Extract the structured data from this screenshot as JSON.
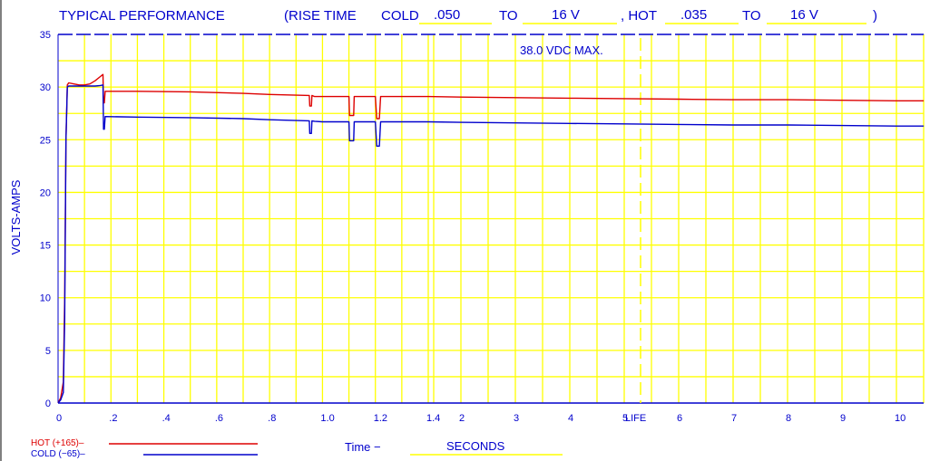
{
  "chart_data": {
    "type": "line",
    "title": "TYPICAL PERFORMANCE",
    "rise_time": {
      "prefix": "(RISE TIME",
      "cold_label": "COLD",
      "cold_value": ".050",
      "to1_label": "TO",
      "cold_to_value": "16 V",
      "hot_label": ", HOT",
      "hot_value": ".035",
      "to2_label": "TO",
      "hot_to_value": "16 V",
      "suffix": ")"
    },
    "annotation": "38.0 VDC MAX.",
    "annotation_value": 35,
    "life_label": "LIFE",
    "ylabel": "VOLTS-AMPS",
    "xlabel_prefix": "Time  −",
    "xlabel_units": "SECONDS",
    "ylim": [
      0,
      35
    ],
    "yticks": [
      0,
      5,
      10,
      15,
      20,
      25,
      30,
      35
    ],
    "ytick_labels": [
      "0",
      "5",
      "10",
      "15",
      "20",
      "25",
      "30",
      "35"
    ],
    "xticks": [
      0,
      0.2,
      0.4,
      0.6,
      0.8,
      1.0,
      1.2,
      1.4,
      2,
      3,
      4,
      5,
      6,
      7,
      8,
      9,
      10
    ],
    "xtick_labels": [
      "0",
      ".2",
      ".4",
      ".6",
      ".8",
      "1.0",
      "1.2",
      "1.4",
      "2",
      "3",
      "4",
      "5",
      "6",
      "7",
      "8",
      "9",
      "10"
    ],
    "x_scale": "piecewise: 0-1.4 s expanded, 1.4-10.5 s compressed",
    "life_x": 5.3,
    "grid": true,
    "legend": "bottom-left",
    "colors": {
      "axes": "#0000cc",
      "grid": "#ffff00",
      "hot": "#dd0000",
      "cold": "#0000cc",
      "title": "#0000cc",
      "fill_values": "#ffff00"
    },
    "series": [
      {
        "name": "HOT (+165)–",
        "color": "#dd0000",
        "x": [
          0,
          0.01,
          0.02,
          0.025,
          0.03,
          0.035,
          0.04,
          0.06,
          0.08,
          0.1,
          0.12,
          0.14,
          0.16,
          0.17,
          0.172,
          0.175,
          0.178,
          0.18,
          0.3,
          0.5,
          0.7,
          0.8,
          0.95,
          0.952,
          0.958,
          0.96,
          0.97,
          1.0,
          1.1,
          1.102,
          1.118,
          1.12,
          1.2,
          1.205,
          1.215,
          1.22,
          1.4,
          2,
          3,
          4,
          5,
          6,
          7,
          8,
          9,
          10,
          10.5
        ],
        "values": [
          0,
          0.5,
          2,
          10,
          25,
          30.2,
          30.4,
          30.3,
          30.2,
          30.2,
          30.3,
          30.6,
          31,
          31.2,
          28.5,
          28.5,
          29.6,
          29.6,
          29.6,
          29.55,
          29.4,
          29.3,
          29.2,
          28.2,
          28.2,
          29.2,
          29.1,
          29.1,
          29.1,
          27.3,
          27.3,
          29.1,
          29.1,
          27,
          27,
          29.1,
          29.1,
          29.05,
          29,
          28.95,
          28.9,
          28.85,
          28.8,
          28.8,
          28.75,
          28.7,
          28.7
        ]
      },
      {
        "name": "COLD  (−65)–",
        "color": "#0000cc",
        "x": [
          0,
          0.01,
          0.02,
          0.025,
          0.03,
          0.035,
          0.04,
          0.06,
          0.08,
          0.1,
          0.12,
          0.14,
          0.16,
          0.17,
          0.172,
          0.175,
          0.178,
          0.18,
          0.3,
          0.5,
          0.7,
          0.8,
          0.95,
          0.952,
          0.958,
          0.96,
          0.97,
          1.0,
          1.1,
          1.102,
          1.118,
          1.12,
          1.2,
          1.205,
          1.215,
          1.22,
          1.4,
          2,
          3,
          4,
          5,
          6,
          7,
          8,
          9,
          10,
          10.5
        ],
        "values": [
          0,
          0.3,
          1,
          8,
          25,
          30,
          30.1,
          30.1,
          30.1,
          30.1,
          30.1,
          30.1,
          30.15,
          30.2,
          26,
          26,
          27.2,
          27.2,
          27.15,
          27.1,
          27,
          26.9,
          26.8,
          25.6,
          25.6,
          26.8,
          26.75,
          26.7,
          26.7,
          24.9,
          24.9,
          26.7,
          26.7,
          24.4,
          24.4,
          26.7,
          26.7,
          26.65,
          26.6,
          26.55,
          26.5,
          26.45,
          26.4,
          26.4,
          26.35,
          26.3,
          26.3
        ]
      }
    ]
  }
}
